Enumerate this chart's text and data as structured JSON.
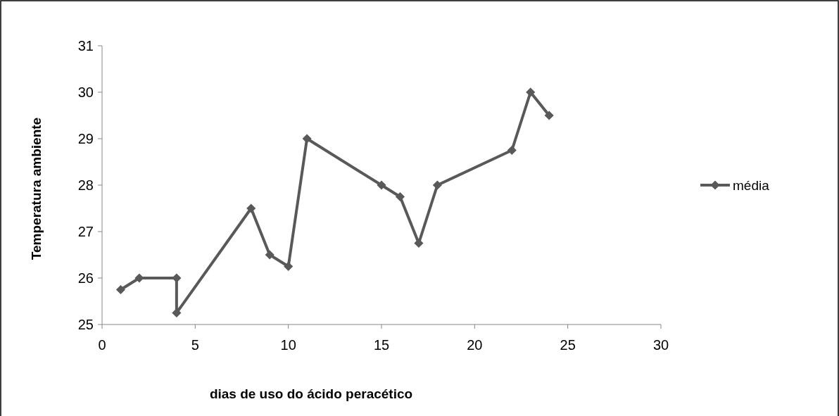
{
  "chart_data": {
    "type": "line",
    "xlabel": "dias de uso do ácido peracético",
    "ylabel": "Temperatura ambiente",
    "x": [
      1,
      2,
      4,
      4,
      8,
      9,
      10,
      11,
      15,
      16,
      17,
      18,
      22,
      23,
      24
    ],
    "series": [
      {
        "name": "média",
        "color": "#595959",
        "values": [
          25.75,
          26,
          26,
          25.25,
          27.5,
          26.5,
          26.25,
          29,
          28,
          27.75,
          26.75,
          28,
          28.75,
          30,
          29.5
        ]
      }
    ],
    "xlim": [
      0,
      30
    ],
    "xticks": [
      0,
      5,
      10,
      15,
      20,
      25,
      30
    ],
    "ylim": [
      25,
      31
    ],
    "yticks": [
      25,
      26,
      27,
      28,
      29,
      30,
      31
    ],
    "marker": "diamond",
    "line_style": "solid",
    "legend": "right",
    "grid": false
  }
}
